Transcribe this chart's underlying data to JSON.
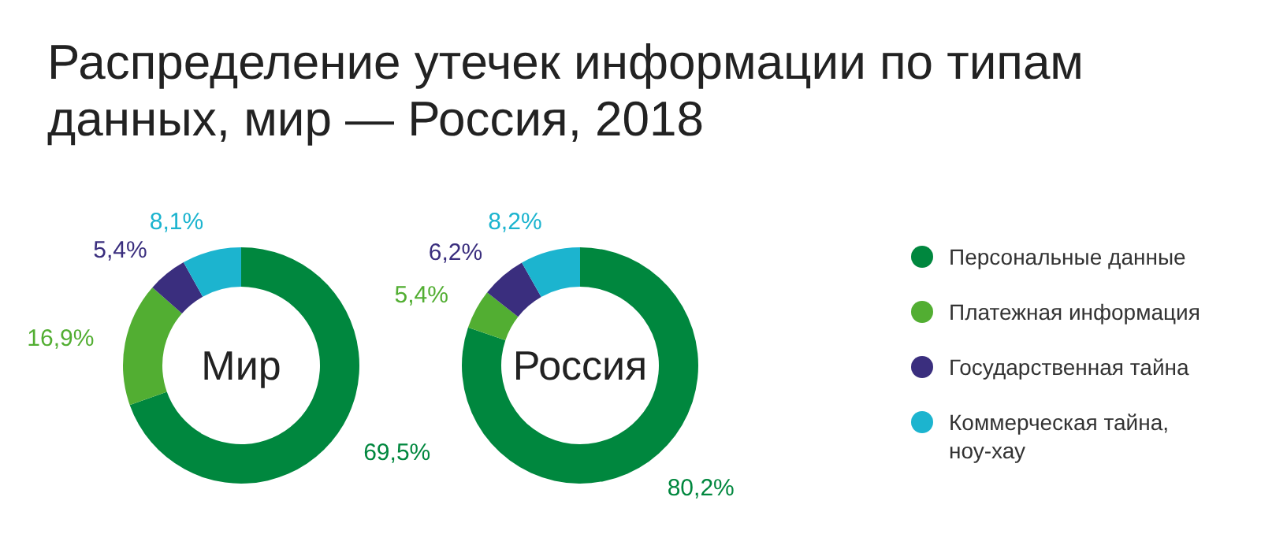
{
  "chart_data": [
    {
      "type": "donut",
      "title": "Распределение утечек информации по типам данных, мир — Россия, 2018",
      "annotations": [
        "Мир"
      ],
      "categories": [
        "Персональные данные",
        "Платежная информация",
        "Государственная тайна",
        "Коммерческая тайна, ноу-хау"
      ],
      "values": [
        69.5,
        16.9,
        5.4,
        8.1
      ],
      "value_labels": [
        "69,5%",
        "16,9%",
        "5,4%",
        "8,1%"
      ],
      "colors": [
        "#00873e",
        "#52ae32",
        "#3a2e7e",
        "#1cb4cf"
      ],
      "legend": "right"
    },
    {
      "type": "donut",
      "annotations": [
        "Россия"
      ],
      "categories": [
        null,
        null,
        null,
        null
      ],
      "values": [
        80.2,
        5.4,
        6.2,
        8.2
      ],
      "value_labels": [
        "80,2%",
        "5,4%",
        "6,2%",
        "8,2%"
      ],
      "colors": [
        "#00873e",
        "#52ae32",
        "#3a2e7e",
        "#1cb4cf"
      ]
    }
  ]
}
